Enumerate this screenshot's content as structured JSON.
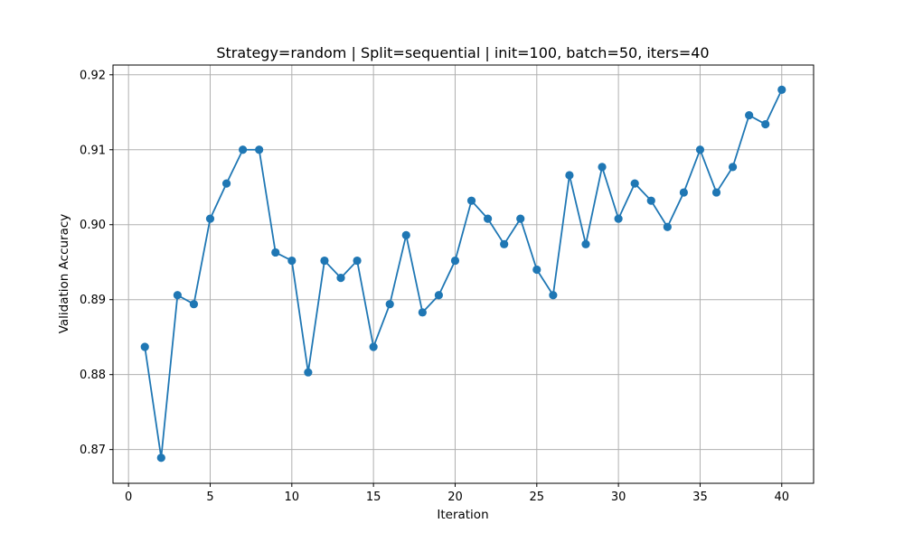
{
  "chart_data": {
    "type": "line",
    "title": "Strategy=random | Split=sequential | init=100, batch=50, iters=40",
    "xlabel": "Iteration",
    "ylabel": "Validation Accuracy",
    "xlim": [
      -0.95,
      41.95
    ],
    "ylim": [
      0.8655,
      0.9213
    ],
    "xticks": [
      0,
      5,
      10,
      15,
      20,
      25,
      30,
      35,
      40
    ],
    "yticks": [
      0.87,
      0.88,
      0.89,
      0.9,
      0.91,
      0.92
    ],
    "ytick_labels": [
      "0.87",
      "0.88",
      "0.89",
      "0.90",
      "0.91",
      "0.92"
    ],
    "grid": true,
    "color": "#1f77b4",
    "marker": "circle",
    "x": [
      1,
      2,
      3,
      4,
      5,
      6,
      7,
      8,
      9,
      10,
      11,
      12,
      13,
      14,
      15,
      16,
      17,
      18,
      19,
      20,
      21,
      22,
      23,
      24,
      25,
      26,
      27,
      28,
      29,
      30,
      31,
      32,
      33,
      34,
      35,
      36,
      37,
      38,
      39,
      40
    ],
    "y": [
      0.8837,
      0.8689,
      0.8906,
      0.8894,
      0.9008,
      0.9055,
      0.91,
      0.91,
      0.8963,
      0.8952,
      0.8803,
      0.8952,
      0.8929,
      0.8952,
      0.8837,
      0.8894,
      0.8986,
      0.8883,
      0.8906,
      0.8952,
      0.9032,
      0.9008,
      0.8974,
      0.9008,
      0.894,
      0.8906,
      0.9066,
      0.8974,
      0.9077,
      0.9008,
      0.9055,
      0.9032,
      0.8997,
      0.9043,
      0.91,
      0.9043,
      0.9077,
      0.9146,
      0.9134,
      0.918
    ]
  }
}
